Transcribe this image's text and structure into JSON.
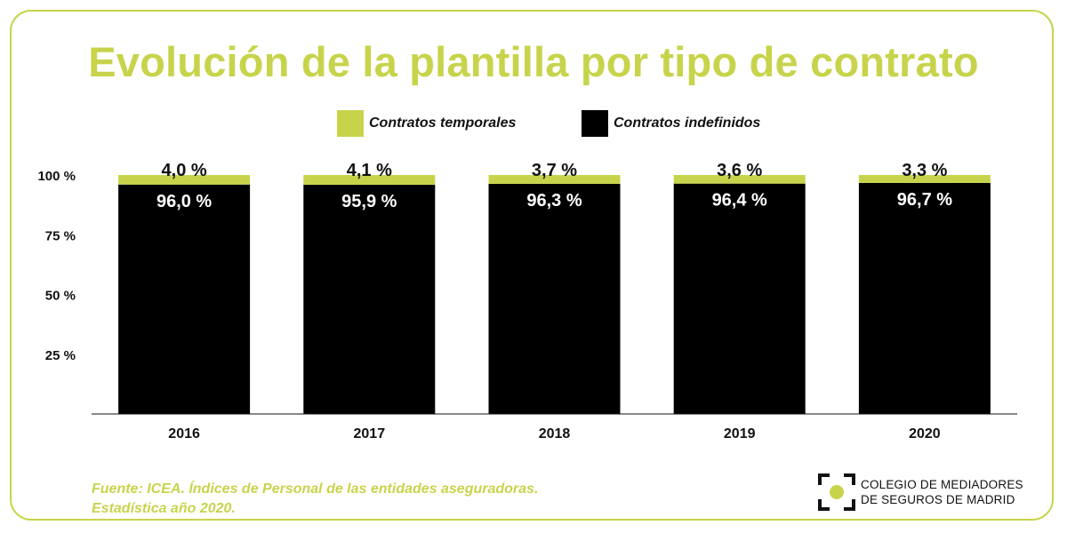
{
  "header": {
    "title": "Evolución de la plantilla por tipo de contrato"
  },
  "legend": [
    {
      "label": "Contratos temporales",
      "color": "#c7d44b"
    },
    {
      "label": "Contratos indefinidos",
      "color": "#000000"
    }
  ],
  "chart_data": {
    "type": "bar",
    "stacked": true,
    "title": "Evolución de la plantilla por tipo de contrato",
    "categories": [
      "2016",
      "2017",
      "2018",
      "2019",
      "2020"
    ],
    "series": [
      {
        "name": "Contratos indefinidos",
        "color": "#000000",
        "values": [
          96.0,
          95.9,
          96.3,
          96.4,
          96.7
        ],
        "labels": [
          "96,0 %",
          "95,9 %",
          "96,3 %",
          "96,4 %",
          "96,7 %"
        ]
      },
      {
        "name": "Contratos temporales",
        "color": "#c7d44b",
        "values": [
          4.0,
          4.1,
          3.7,
          3.6,
          3.3
        ],
        "labels": [
          "4,0 %",
          "4,1 %",
          "3,7 %",
          "3,6 %",
          "3,3 %"
        ]
      }
    ],
    "yticks": [
      25,
      50,
      75,
      100
    ],
    "ytick_labels": [
      "25 %",
      "50 %",
      "75 %",
      "100 %"
    ],
    "ylim": [
      0,
      100
    ],
    "grid": false,
    "legend_position": "top-center"
  },
  "footer": {
    "source_line1": "Fuente: ICEA. Índices de Personal de las entidades aseguradoras.",
    "source_line2": "Estadística año 2020.",
    "logo_line1": "COLEGIO DE MEDIADORES",
    "logo_line2": "DE SEGUROS DE MADRID"
  }
}
